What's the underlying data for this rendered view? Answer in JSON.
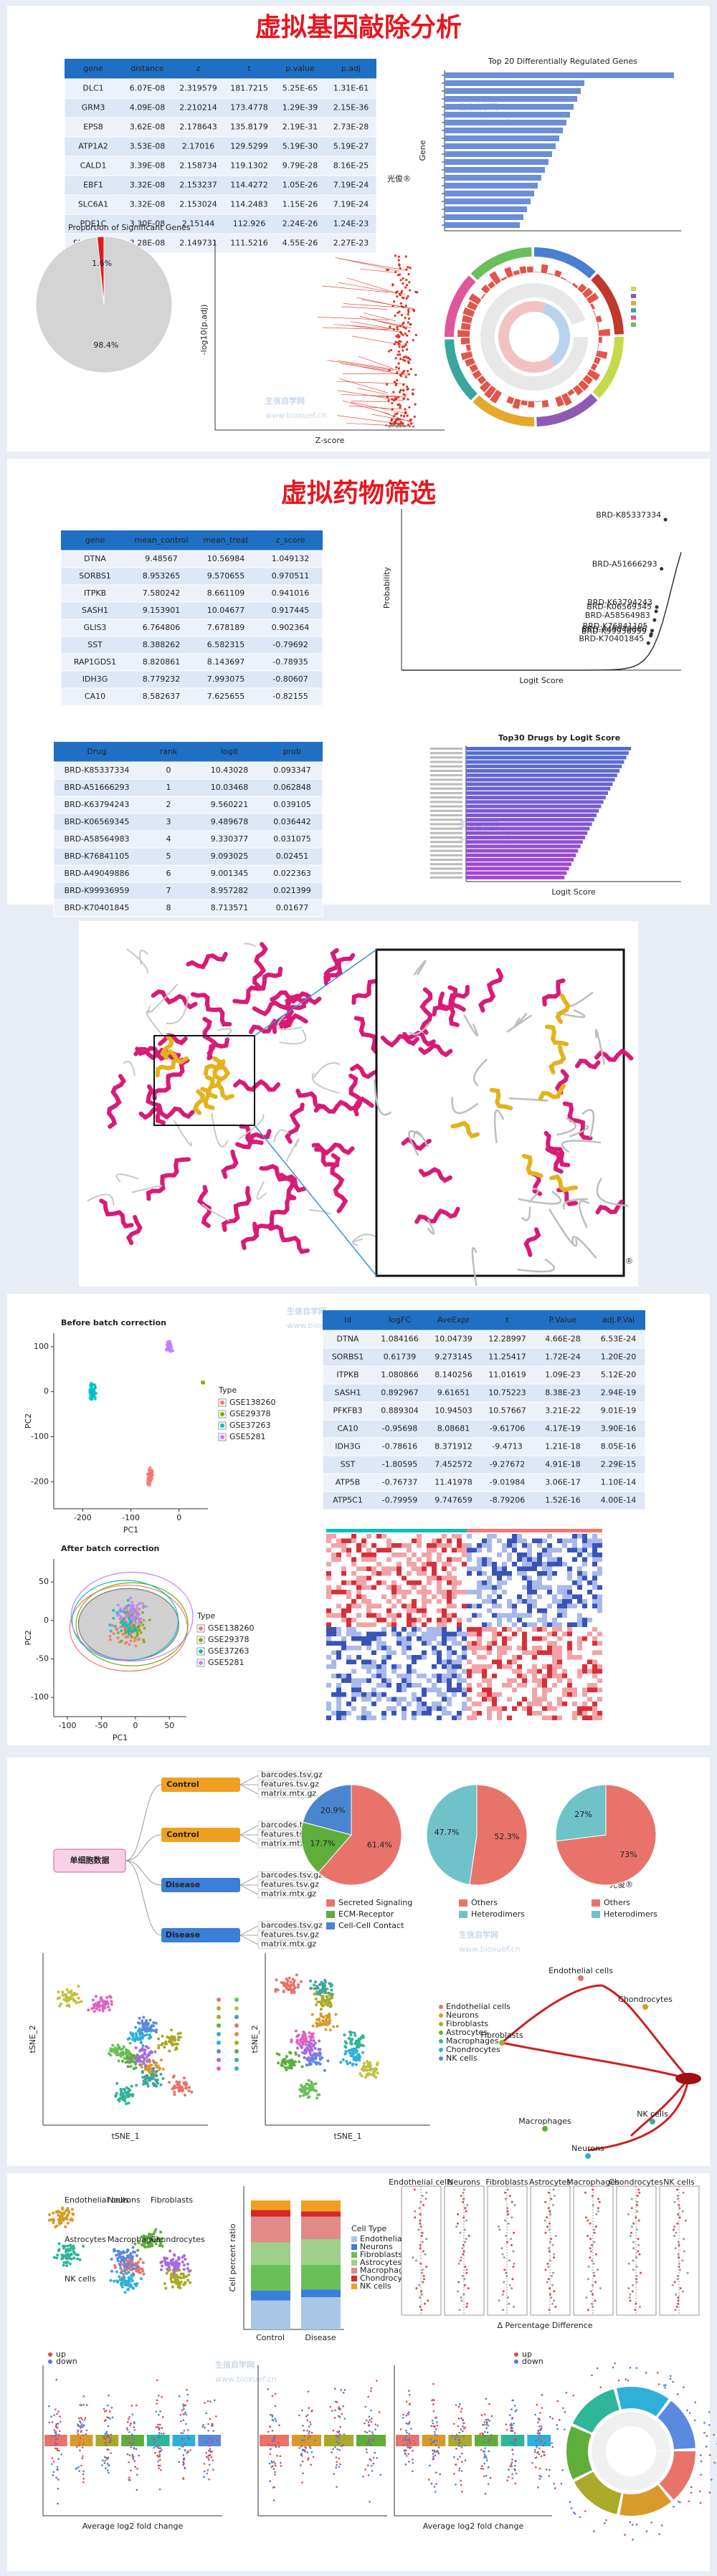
{
  "watermarks": {
    "brand": "光俊®",
    "site": "生信自学网",
    "url": "www.bioxuef.cn"
  },
  "section1": {
    "title": "虚拟基因敲除分析",
    "table": {
      "columns": [
        "gene",
        "distance",
        "z",
        "t",
        "p.value",
        "p.adj"
      ],
      "rows": [
        [
          "DLC1",
          "6.07E-08",
          "2.319579",
          "181.7215",
          "5.25E-65",
          "1.31E-61"
        ],
        [
          "GRM3",
          "4.09E-08",
          "2.210214",
          "173.4778",
          "1.29E-39",
          "2.15E-36"
        ],
        [
          "EPS8",
          "3.62E-08",
          "2.178643",
          "135.8179",
          "2.19E-31",
          "2.73E-28"
        ],
        [
          "ATP1A2",
          "3.53E-08",
          "2.17016",
          "129.5299",
          "5.19E-30",
          "5.19E-27"
        ],
        [
          "CALD1",
          "3.39E-08",
          "2.158734",
          "119.1302",
          "9.79E-28",
          "8.16E-25"
        ],
        [
          "EBF1",
          "3.32E-08",
          "2.153237",
          "114.4272",
          "1.05E-26",
          "7.19E-24"
        ],
        [
          "SLC6A1",
          "3.32E-08",
          "2.153024",
          "114.2483",
          "1.15E-26",
          "7.19E-24"
        ],
        [
          "PDE1C",
          "3.30E-08",
          "2.15144",
          "112.926",
          "2.24E-26",
          "1.24E-23"
        ],
        [
          "SLC38A11",
          "3.28E-08",
          "2.149731",
          "111.5216",
          "4.55E-26",
          "2.27E-23"
        ]
      ]
    },
    "bar_chart": {
      "title": "Top 20 Differentially Regulated Genes",
      "ylabel": "Gene"
    },
    "pie": {
      "type": "pie",
      "title": "Proportion of Significant Genes",
      "values": [
        98.4,
        1.6
      ],
      "value_labels": [
        "98.4%",
        "1.6%"
      ],
      "colors": [
        "#d4d4d4",
        "#e41a1c"
      ]
    },
    "volcano": {
      "xlabel": "Z-score",
      "ylabel": "-log10(p.adj)"
    }
  },
  "section2": {
    "title": "虚拟药物筛选",
    "table": {
      "columns": [
        "gene",
        "mean_control",
        "mean_treat",
        "z_score"
      ],
      "rows": [
        [
          "DTNA",
          "9.48567",
          "10.56984",
          "1.049132"
        ],
        [
          "SORBS1",
          "8.953265",
          "9.570655",
          "0.970511"
        ],
        [
          "ITPKB",
          "7.580242",
          "8.661109",
          "0.941016"
        ],
        [
          "SASH1",
          "9.153901",
          "10.04677",
          "0.917445"
        ],
        [
          "GLIS3",
          "6.764806",
          "7.678189",
          "0.902364"
        ],
        [
          "SST",
          "8.388262",
          "6.582315",
          "-0.79692"
        ],
        [
          "RAP1GDS1",
          "8.820861",
          "8.143697",
          "-0.78935"
        ],
        [
          "IDH3G",
          "8.779232",
          "7.993075",
          "-0.80607"
        ],
        [
          "CA10",
          "8.582637",
          "7.625655",
          "-0.82155"
        ]
      ]
    },
    "drug_table": {
      "columns": [
        "Drug",
        "rank",
        "logit",
        "prob"
      ],
      "rows": [
        [
          "BRD-K85337334",
          "0",
          "10.43028",
          "0.093347"
        ],
        [
          "BRD-A51666293",
          "1",
          "10.03468",
          "0.062848"
        ],
        [
          "BRD-K63794243",
          "2",
          "9.560221",
          "0.039105"
        ],
        [
          "BRD-K06569345",
          "3",
          "9.489678",
          "0.036442"
        ],
        [
          "BRD-A58564983",
          "4",
          "9.330377",
          "0.031075"
        ],
        [
          "BRD-K76841105",
          "5",
          "9.093025",
          "0.02451"
        ],
        [
          "BRD-A49049886",
          "6",
          "9.001345",
          "0.022363"
        ],
        [
          "BRD-K99936959",
          "7",
          "8.957282",
          "0.021399"
        ],
        [
          "BRD-K70401845",
          "8",
          "8.713571",
          "0.01677"
        ]
      ]
    },
    "logit_plot": {
      "type": "scatter",
      "xlabel": "Logit Score",
      "ylabel": "Probability",
      "xlim": [
        -16,
        12
      ],
      "ylim": [
        0,
        0.1
      ]
    },
    "drug_bars": {
      "title": "Top30 Drugs by Logit Score",
      "xlabel": "Logit Score"
    }
  },
  "section4": {
    "pca_before": {
      "title": "Before batch correction",
      "xlabel": "PC1",
      "ylabel": "PC2",
      "xlim": [
        -260,
        60
      ],
      "ylim": [
        -260,
        130
      ],
      "xticks": [
        -200,
        -100,
        0
      ],
      "yticks": [
        -200,
        -100,
        0,
        100
      ]
    },
    "pca_after": {
      "title": "After batch correction",
      "xlabel": "PC1",
      "ylabel": "PC2",
      "xlim": [
        -120,
        75
      ],
      "ylim": [
        -125,
        80
      ],
      "xticks": [
        -100,
        -50,
        0,
        50
      ],
      "yticks": [
        -100,
        -50,
        0,
        50
      ]
    },
    "legend": {
      "title": "Type",
      "names": [
        "GSE138260",
        "GSE29378",
        "GSE37263",
        "GSE5281"
      ],
      "colors": [
        "#f8766d",
        "#7cae00",
        "#00bfc4",
        "#c77cff"
      ]
    },
    "table": {
      "columns": [
        "id",
        "logFC",
        "AveExpr",
        "t",
        "P.Value",
        "adj.P.Val"
      ],
      "rows": [
        [
          "DTNA",
          "1.084166",
          "10.04739",
          "12.28997",
          "4.66E-28",
          "6.53E-24"
        ],
        [
          "SORBS1",
          "0.61739",
          "9.273145",
          "11.25417",
          "1.72E-24",
          "1.20E-20"
        ],
        [
          "ITPKB",
          "1.080866",
          "8.140256",
          "11.01619",
          "1.09E-23",
          "5.12E-20"
        ],
        [
          "SASH1",
          "0.892967",
          "9.61651",
          "10.75223",
          "8.38E-23",
          "2.94E-19"
        ],
        [
          "PFKFB3",
          "0.889304",
          "10.94503",
          "10.57667",
          "3.21E-22",
          "9.01E-19"
        ],
        [
          "CA10",
          "-0.95698",
          "8.08681",
          "-9.61706",
          "4.17E-19",
          "3.90E-16"
        ],
        [
          "IDH3G",
          "-0.78616",
          "8.371912",
          "-9.4713",
          "1.21E-18",
          "8.05E-16"
        ],
        [
          "SST",
          "-1.80595",
          "7.452572",
          "-9.27672",
          "4.91E-18",
          "2.29E-15"
        ],
        [
          "ATP5B",
          "-0.76737",
          "11.41978",
          "-9.01984",
          "3.06E-17",
          "1.10E-14"
        ],
        [
          "ATP5C1",
          "-0.79959",
          "9.747659",
          "-8.79206",
          "1.52E-16",
          "4.00E-14"
        ]
      ]
    }
  },
  "section5": {
    "root": "单细胞数据",
    "samples": [
      "Control",
      "Control",
      "Disease",
      "Disease"
    ],
    "files": [
      "barcodes.tsv.gz",
      "features.tsv.gz",
      "matrix.mtx.gz"
    ],
    "pies": [
      {
        "type": "pie",
        "values": [
          61.4,
          17.7,
          20.9
        ],
        "value_labels": [
          "61.4%",
          "17.7%",
          "20.9%"
        ],
        "colors": [
          "#e8736a",
          "#5fae3c",
          "#4a86d0"
        ]
      },
      {
        "type": "pie",
        "values": [
          52.3,
          47.7
        ],
        "value_labels": [
          "52.3%",
          "47.7%"
        ],
        "colors": [
          "#e8736a",
          "#6fc2c8"
        ]
      },
      {
        "type": "pie",
        "values": [
          73,
          27
        ],
        "value_labels": [
          "73%",
          "27%"
        ],
        "colors": [
          "#e8736a",
          "#6fc2c8"
        ]
      }
    ],
    "legend1": [
      "Secreted Signaling",
      "ECM-Receptor",
      "Cell-Cell Contact"
    ],
    "legend2": [
      "Others",
      "Heterodimers"
    ],
    "tsne": {
      "xlabel": "tSNE_1",
      "ylabel": "tSNE_2"
    },
    "cell_types": [
      "Endothelial cells",
      "Neurons",
      "Fibroblasts",
      "Astrocytes",
      "Macrophages",
      "Chondrocytes",
      "NK cells"
    ],
    "trajectory": [
      "Endothelial cells",
      "Chondrocytes",
      "Fibroblasts",
      "Macrophages",
      "NK cells",
      "Neurons"
    ]
  },
  "section6": {
    "stack": {
      "legend_title": "Cell Type",
      "ylabel": "Cell percent ratio",
      "categories": [
        "Control",
        "Disease"
      ]
    },
    "diff_xlabel": "Δ Percentage Difference",
    "fc_label": "Average log2 fold change",
    "groups": [
      "up",
      "down"
    ]
  }
}
